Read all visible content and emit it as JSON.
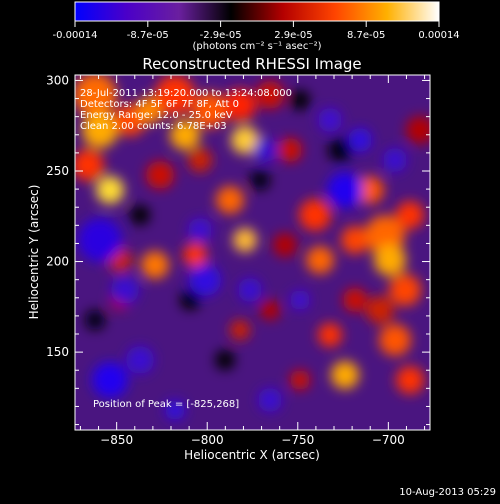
{
  "colorbar": {
    "tick_labels": [
      "-0.00014",
      "-8.7e-05",
      "-2.9e-05",
      "2.9e-05",
      "8.7e-05",
      "0.00014"
    ],
    "unit_label": "(photons cm⁻² s⁻¹ asec⁻²)",
    "range": [
      -0.00014,
      0.00014
    ],
    "stops": [
      "#0000ff",
      "#4b00c8",
      "#6a1f9f",
      "#000000",
      "#b40000",
      "#ff4400",
      "#ffb000",
      "#ffffff"
    ]
  },
  "chart_data": {
    "type": "heatmap",
    "title": "Reconstructed RHESSI Image",
    "xlabel": "Heliocentric X (arcsec)",
    "ylabel": "Heliocentric Y (arcsec)",
    "xlim": [
      -873,
      -677
    ],
    "ylim": [
      107,
      303
    ],
    "xticks": [
      -850,
      -800,
      -750,
      -700
    ],
    "yticks": [
      150,
      200,
      250,
      300
    ],
    "annotations": [
      "28-Jul-2011 13:19:20.000 to 13:24:08.000",
      "Detectors: 4F 5F 6F 7F 8F, Att 0",
      "Energy Range: 12.0 - 25.0 keV",
      "Clean  2.00 counts: 6.78E+03"
    ],
    "peak_label": "Position of Peak = [-825,268]",
    "peak_position": [
      -825,
      268
    ],
    "colors": {
      "axes": "#ffffff",
      "background": "#000000"
    }
  },
  "footer": {
    "timestamp": "10-Aug-2013 05:29"
  }
}
